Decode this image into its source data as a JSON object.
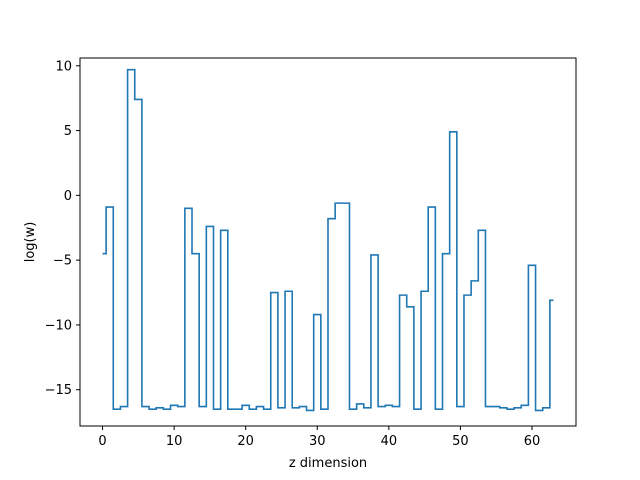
{
  "chart_data": {
    "type": "line",
    "drawstyle": "steps-mid",
    "title": "",
    "xlabel": "z dimension",
    "ylabel": "log(w)",
    "xlim": [
      -3.15,
      66.15
    ],
    "ylim": [
      -17.8,
      10.6
    ],
    "xticks": [
      0,
      10,
      20,
      30,
      40,
      50,
      60
    ],
    "yticks": [
      10,
      5,
      0,
      -5,
      -10,
      -15
    ],
    "grid": false,
    "legend": "none",
    "series": [
      {
        "color": "#1f77b4",
        "x": [
          0,
          1,
          2,
          3,
          4,
          5,
          6,
          7,
          8,
          9,
          10,
          11,
          12,
          13,
          14,
          15,
          16,
          17,
          18,
          19,
          20,
          21,
          22,
          23,
          24,
          25,
          26,
          27,
          28,
          29,
          30,
          31,
          32,
          33,
          34,
          35,
          36,
          37,
          38,
          39,
          40,
          41,
          42,
          43,
          44,
          45,
          46,
          47,
          48,
          49,
          50,
          51,
          52,
          53,
          54,
          55,
          56,
          57,
          58,
          59,
          60,
          61,
          62,
          63
        ],
        "values": [
          -4.5,
          -0.9,
          -16.5,
          -16.3,
          9.7,
          7.4,
          -16.3,
          -16.5,
          -16.4,
          -16.5,
          -16.2,
          -16.3,
          -1.0,
          -4.5,
          -16.3,
          -2.4,
          -16.5,
          -2.7,
          -16.5,
          -16.5,
          -16.2,
          -16.5,
          -16.3,
          -16.5,
          -7.5,
          -16.4,
          -7.4,
          -16.4,
          -16.3,
          -16.6,
          -9.2,
          -16.5,
          -1.8,
          -0.6,
          -0.6,
          -16.5,
          -16.1,
          -16.4,
          -4.6,
          -16.3,
          -16.2,
          -16.3,
          -7.7,
          -8.6,
          -16.5,
          -7.4,
          -0.9,
          -16.5,
          -4.5,
          4.9,
          -16.3,
          -7.7,
          -6.6,
          -2.7,
          -16.3,
          -16.3,
          -16.4,
          -16.5,
          -16.4,
          -16.2,
          -5.4,
          -16.6,
          -16.4,
          -8.1
        ]
      }
    ]
  }
}
